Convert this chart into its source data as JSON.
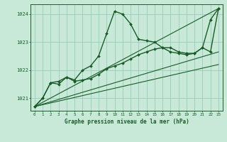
{
  "title": "Graphe pression niveau de la mer (hPa)",
  "bg_color": "#c8e8d8",
  "grid_color": "#99ccbb",
  "line_color": "#1a5c28",
  "xlim": [
    -0.5,
    23.5
  ],
  "ylim": [
    1020.55,
    1024.35
  ],
  "yticks": [
    1021,
    1022,
    1023,
    1024
  ],
  "xticks": [
    0,
    1,
    2,
    3,
    4,
    5,
    6,
    7,
    8,
    9,
    10,
    11,
    12,
    13,
    14,
    15,
    16,
    17,
    18,
    19,
    20,
    21,
    22,
    23
  ],
  "series": [
    {
      "x": [
        0,
        1,
        2,
        3,
        4,
        5,
        6,
        7,
        8,
        9,
        10,
        11,
        12,
        13,
        14,
        15,
        16,
        17,
        18,
        19,
        20,
        21,
        22,
        23
      ],
      "y": [
        1020.7,
        1021.0,
        1021.55,
        1021.6,
        1021.75,
        1021.65,
        1022.0,
        1022.15,
        1022.5,
        1023.3,
        1024.1,
        1024.0,
        1023.65,
        1023.1,
        1023.05,
        1023.0,
        1022.8,
        1022.65,
        1022.6,
        1022.55,
        1022.6,
        1022.8,
        1023.8,
        1024.2
      ],
      "lw": 1.0,
      "marker": true
    },
    {
      "x": [
        0,
        1,
        2,
        3,
        4,
        5,
        6,
        7,
        8,
        9,
        10,
        11,
        12,
        13,
        14,
        15,
        16,
        17,
        18,
        19,
        20,
        21,
        22,
        23
      ],
      "y": [
        1020.7,
        1021.0,
        1021.55,
        1021.5,
        1021.75,
        1021.6,
        1021.65,
        1021.7,
        1021.85,
        1022.05,
        1022.15,
        1022.25,
        1022.4,
        1022.55,
        1022.65,
        1022.75,
        1022.8,
        1022.8,
        1022.65,
        1022.6,
        1022.6,
        1022.8,
        1022.65,
        1024.2
      ],
      "lw": 1.0,
      "marker": true
    },
    {
      "x": [
        0,
        23
      ],
      "y": [
        1020.7,
        1024.2
      ],
      "lw": 0.8,
      "marker": false
    },
    {
      "x": [
        0,
        23
      ],
      "y": [
        1020.7,
        1022.65
      ],
      "lw": 0.8,
      "marker": false
    },
    {
      "x": [
        0,
        23
      ],
      "y": [
        1020.7,
        1022.2
      ],
      "lw": 0.8,
      "marker": false
    }
  ]
}
